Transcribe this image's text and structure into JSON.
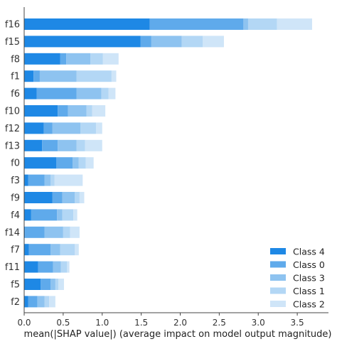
{
  "chart_data": {
    "type": "bar",
    "orientation": "horizontal",
    "stacked": true,
    "title": "",
    "xlabel": "mean(|SHAP value|) (average impact on model output magnitude)",
    "ylabel": "",
    "xlim": [
      0,
      3.9
    ],
    "xticks": [
      "0.0",
      "0.5",
      "1.0",
      "1.5",
      "2.0",
      "2.5",
      "3.0",
      "3.5"
    ],
    "categories": [
      "f16",
      "f15",
      "f8",
      "f1",
      "f6",
      "f10",
      "f12",
      "f13",
      "f0",
      "f3",
      "f9",
      "f4",
      "f14",
      "f7",
      "f11",
      "f5",
      "f2"
    ],
    "legend_position": "bottom-right",
    "grid": false,
    "series": [
      {
        "name": "Class 4",
        "color": "#1e88e5",
        "values": [
          1.61,
          1.49,
          0.46,
          0.12,
          0.16,
          0.43,
          0.25,
          0.23,
          0.41,
          0.05,
          0.36,
          0.09,
          0.01,
          0.06,
          0.18,
          0.21,
          0.05
        ]
      },
      {
        "name": "Class 0",
        "color": "#5faaeb",
        "values": [
          1.2,
          0.14,
          0.08,
          0.08,
          0.51,
          0.13,
          0.11,
          0.2,
          0.21,
          0.21,
          0.13,
          0.33,
          0.25,
          0.28,
          0.19,
          0.13,
          0.12
        ]
      },
      {
        "name": "Class 3",
        "color": "#8ec3f0",
        "values": [
          0.06,
          0.39,
          0.31,
          0.47,
          0.32,
          0.24,
          0.36,
          0.24,
          0.08,
          0.08,
          0.16,
          0.07,
          0.24,
          0.12,
          0.1,
          0.06,
          0.09
        ]
      },
      {
        "name": "Class 1",
        "color": "#b3d7f5",
        "values": [
          0.37,
          0.27,
          0.16,
          0.45,
          0.09,
          0.07,
          0.2,
          0.11,
          0.09,
          0.05,
          0.06,
          0.14,
          0.09,
          0.19,
          0.08,
          0.04,
          0.06
        ]
      },
      {
        "name": "Class 2",
        "color": "#cfe5f8",
        "values": [
          0.45,
          0.27,
          0.2,
          0.06,
          0.09,
          0.17,
          0.08,
          0.22,
          0.1,
          0.36,
          0.06,
          0.05,
          0.12,
          0.05,
          0.03,
          0.07,
          0.08
        ]
      }
    ]
  }
}
